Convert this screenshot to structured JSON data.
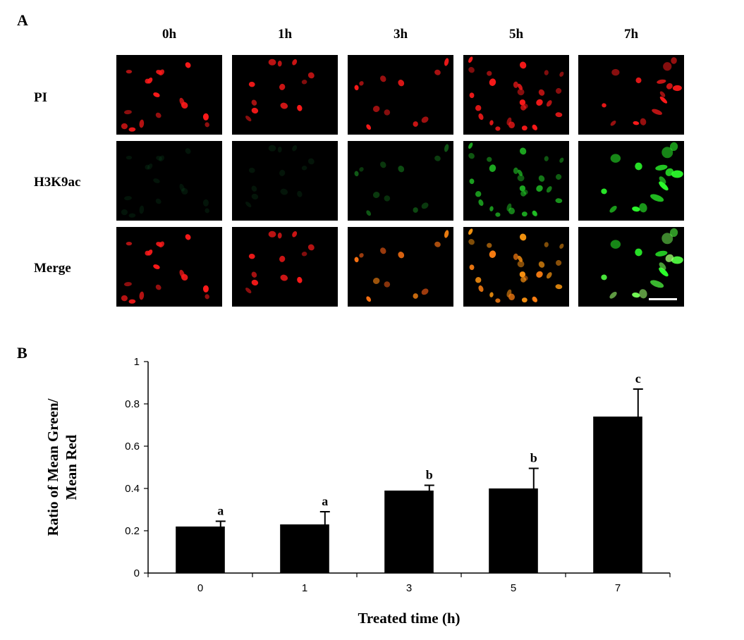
{
  "panel_a": {
    "letter": "A",
    "columns": [
      "0h",
      "1h",
      "3h",
      "5h",
      "7h"
    ],
    "rows": [
      "PI",
      "H3K9ac",
      "Merge"
    ],
    "colors": {
      "pi": "#ff1a1a",
      "h3k9ac": "#2cff2c",
      "merge_mix": "#ff9a10",
      "background": "#000000"
    },
    "green_intensity": [
      0.1,
      0.12,
      0.55,
      0.8,
      1.0
    ]
  },
  "panel_b": {
    "letter": "B"
  },
  "chart_data": {
    "type": "bar",
    "categories": [
      "0",
      "1",
      "3",
      "5",
      "7"
    ],
    "values": [
      0.22,
      0.23,
      0.39,
      0.4,
      0.74
    ],
    "errors": [
      0.025,
      0.06,
      0.025,
      0.095,
      0.13
    ],
    "significance": [
      "a",
      "a",
      "b",
      "b",
      "c"
    ],
    "xlabel": "Treated time (h)",
    "ylabel_lines": [
      "Ratio of Mean Green/",
      "Mean Red"
    ],
    "ylim": [
      0,
      1
    ],
    "yticks": [
      "0",
      "0.2",
      "0.4",
      "0.6",
      "0.8",
      "1"
    ],
    "bar_color": "#000000",
    "grid": false
  }
}
